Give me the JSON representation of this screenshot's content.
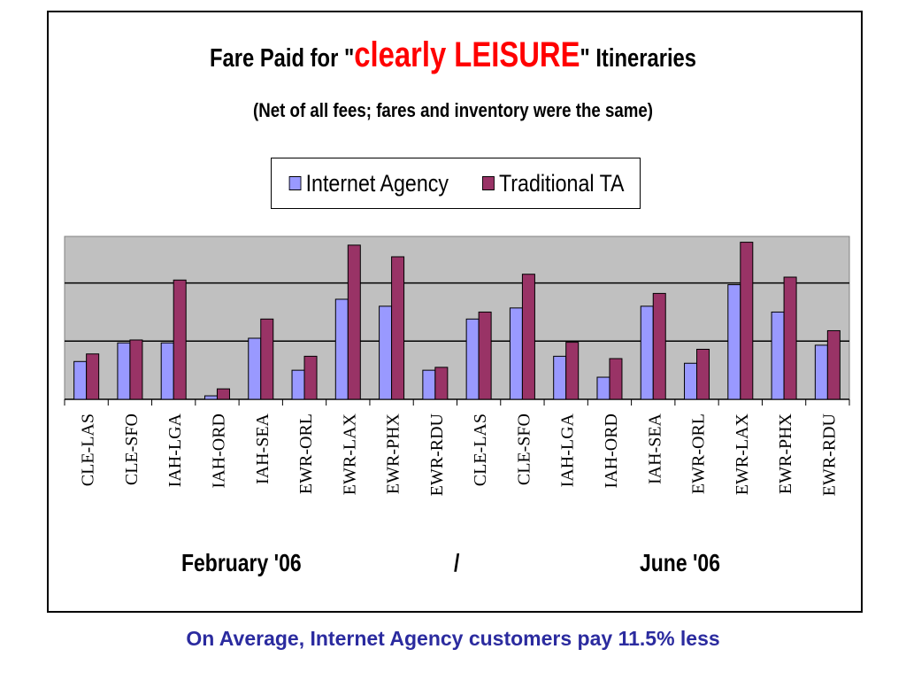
{
  "chart_data": {
    "type": "bar",
    "title_prefix": "Fare Paid for \"",
    "title_highlight": "clearly LEISURE",
    "title_suffix": "\" Itineraries",
    "subtitle": "(Net of all fees; fares and inventory were the same)",
    "categories": [
      "CLE-LAS",
      "CLE-SFO",
      "IAH-LGA",
      "IAH-ORD",
      "IAH-SEA",
      "EWR-ORL",
      "EWR-LAX",
      "EWR-PHX",
      "EWR-RDU",
      "CLE-LAS",
      "CLE-SFO",
      "IAH-LGA",
      "IAH-ORD",
      "IAH-SEA",
      "EWR-ORL",
      "EWR-LAX",
      "EWR-PHX",
      "EWR-RDU"
    ],
    "series": [
      {
        "name": "Internet Agency",
        "color": "#9999ff",
        "values": [
          65,
          97,
          97,
          6,
          105,
          50,
          172,
          160,
          50,
          138,
          157,
          74,
          38,
          160,
          62,
          197,
          150,
          93
        ]
      },
      {
        "name": "Traditional TA",
        "color": "#993366",
        "values": [
          78,
          102,
          205,
          18,
          138,
          74,
          265,
          245,
          55,
          150,
          215,
          98,
          70,
          182,
          86,
          270,
          210,
          118
        ]
      }
    ],
    "ylim": [
      0,
      280
    ],
    "gridlines": [
      100,
      200
    ],
    "grid": true,
    "plot_background": "#c0c0c0",
    "legend_position": "top-center",
    "group_labels": [
      "February '06",
      "/",
      "June '06"
    ],
    "footnote": "On Average, Internet Agency customers pay 11.5% less",
    "footnote_color": "#2b2b9f",
    "title_highlight_color": "#ff0000"
  }
}
